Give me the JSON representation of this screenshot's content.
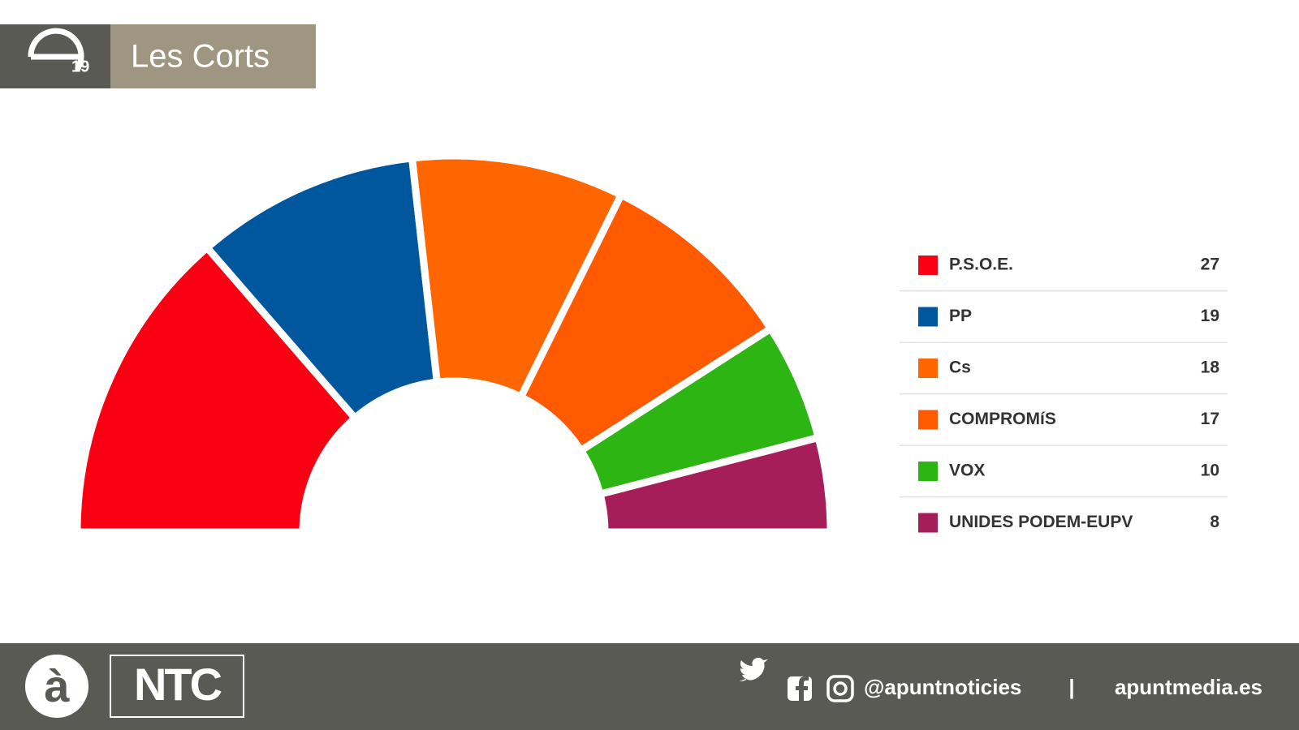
{
  "header": {
    "logo_number": "19",
    "title": "Les Corts"
  },
  "chart_data": {
    "type": "parliament",
    "categories": [
      "P.S.O.E.",
      "PP",
      "Cs",
      "COMPROMíS",
      "VOX",
      "UNIDES PODEM-EUPV"
    ],
    "values": [
      27,
      19,
      18,
      17,
      10,
      8
    ],
    "colors": [
      "#f90012",
      "#00579e",
      "#ff6600",
      "#ff5a00",
      "#2db514",
      "#a51e5a"
    ],
    "legend": "right"
  },
  "footer": {
    "logo_letter": "à",
    "brand": "NTC",
    "handle": "@apuntnoticies",
    "separator": "|",
    "website": "apuntmedia.es"
  }
}
